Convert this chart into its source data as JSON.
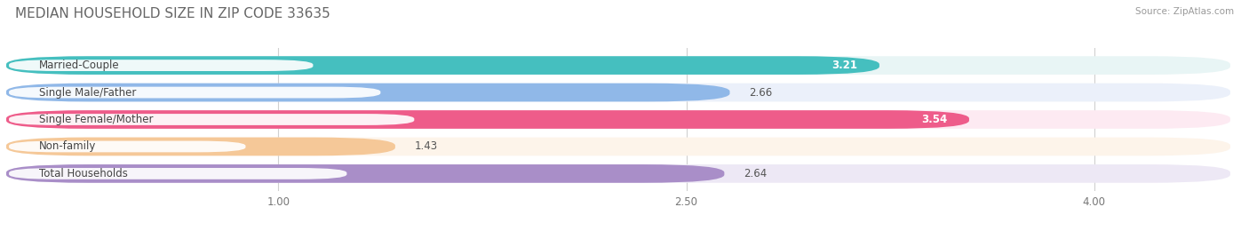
{
  "title": "MEDIAN HOUSEHOLD SIZE IN ZIP CODE 33635",
  "source": "Source: ZipAtlas.com",
  "categories": [
    "Married-Couple",
    "Single Male/Father",
    "Single Female/Mother",
    "Non-family",
    "Total Households"
  ],
  "values": [
    3.21,
    2.66,
    3.54,
    1.43,
    2.64
  ],
  "bar_colors": [
    "#45BFBF",
    "#90B8E8",
    "#EE5C8A",
    "#F5C898",
    "#A98EC8"
  ],
  "bar_bg_colors": [
    "#E8F5F5",
    "#EBF0FA",
    "#FDEAF2",
    "#FDF4EA",
    "#EDE8F5"
  ],
  "xmin": 0.0,
  "xmax": 4.5,
  "xticks": [
    1.0,
    2.5,
    4.0
  ],
  "xticklabels": [
    "1.00",
    "2.50",
    "4.00"
  ],
  "value_label_color_inside": [
    "#ffffff",
    "#555555",
    "#ffffff",
    "#555555",
    "#555555"
  ],
  "value_inside": [
    true,
    false,
    true,
    false,
    false
  ],
  "value_fontsize": 8.5,
  "label_fontsize": 8.5,
  "title_fontsize": 11,
  "background_color": "#FFFFFF"
}
